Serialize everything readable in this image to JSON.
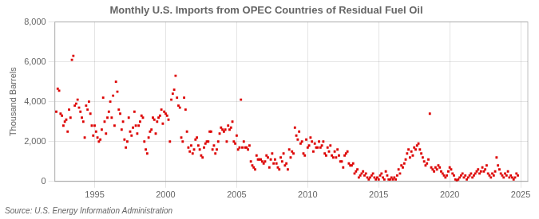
{
  "chart_data": {
    "type": "scatter",
    "title": "Monthly U.S. Imports from OPEC Countries of Residual Fuel Oil",
    "ylabel": "Thousand Barrels",
    "annotations": [
      "Source: U.S. Energy Information Administration"
    ],
    "color": "#dd0000",
    "marker": "square",
    "grid": true,
    "xlim": [
      1992.2,
      2025.5
    ],
    "xticks": [
      1995,
      2000,
      2005,
      2010,
      2015,
      2020,
      2025
    ],
    "ylim": [
      0,
      8000
    ],
    "yticks": [
      0,
      {
        "value": 2000,
        "label": "2,000"
      },
      {
        "value": 4000,
        "label": "4,000"
      },
      {
        "value": 6000,
        "label": "6,000"
      },
      {
        "value": 8000,
        "label": "8,000"
      }
    ],
    "x": [
      1992.3,
      1992.4,
      1992.5,
      1992.6,
      1992.7,
      1992.8,
      1992.9,
      1993.0,
      1993.1,
      1993.2,
      1993.3,
      1993.4,
      1993.5,
      1993.6,
      1993.7,
      1993.8,
      1993.9,
      1994.0,
      1994.1,
      1994.2,
      1994.3,
      1994.4,
      1994.5,
      1994.6,
      1994.7,
      1994.8,
      1994.9,
      1995.0,
      1995.1,
      1995.2,
      1995.3,
      1995.4,
      1995.5,
      1995.6,
      1995.7,
      1995.8,
      1995.9,
      1996.0,
      1996.1,
      1996.2,
      1996.3,
      1996.4,
      1996.5,
      1996.6,
      1996.7,
      1996.8,
      1996.9,
      1997.0,
      1997.1,
      1997.2,
      1997.3,
      1997.4,
      1997.5,
      1997.6,
      1997.7,
      1997.8,
      1997.9,
      1998.0,
      1998.1,
      1998.2,
      1998.3,
      1998.4,
      1998.5,
      1998.6,
      1998.7,
      1998.8,
      1998.9,
      1999.0,
      1999.1,
      1999.2,
      1999.3,
      1999.4,
      1999.5,
      1999.6,
      1999.7,
      1999.8,
      1999.9,
      2000.0,
      2000.1,
      2000.2,
      2000.3,
      2000.4,
      2000.5,
      2000.6,
      2000.7,
      2000.8,
      2000.9,
      2001.0,
      2001.1,
      2001.2,
      2001.3,
      2001.4,
      2001.5,
      2001.6,
      2001.7,
      2001.8,
      2001.9,
      2002.0,
      2002.1,
      2002.2,
      2002.3,
      2002.4,
      2002.5,
      2002.6,
      2002.7,
      2002.8,
      2002.9,
      2003.0,
      2003.1,
      2003.2,
      2003.3,
      2003.4,
      2003.5,
      2003.6,
      2003.7,
      2003.8,
      2003.9,
      2004.0,
      2004.1,
      2004.2,
      2004.3,
      2004.4,
      2004.5,
      2004.6,
      2004.7,
      2004.8,
      2004.9,
      2005.0,
      2005.1,
      2005.2,
      2005.3,
      2005.4,
      2005.5,
      2005.6,
      2005.7,
      2005.8,
      2005.9,
      2006.0,
      2006.1,
      2006.2,
      2006.3,
      2006.4,
      2006.5,
      2006.6,
      2006.7,
      2006.8,
      2006.9,
      2007.0,
      2007.1,
      2007.2,
      2007.3,
      2007.4,
      2007.5,
      2007.6,
      2007.7,
      2007.8,
      2007.9,
      2008.0,
      2008.1,
      2008.2,
      2008.3,
      2008.4,
      2008.5,
      2008.6,
      2008.7,
      2008.8,
      2008.9,
      2009.0,
      2009.1,
      2009.2,
      2009.3,
      2009.4,
      2009.5,
      2009.6,
      2009.7,
      2009.8,
      2009.9,
      2010.0,
      2010.1,
      2010.2,
      2010.3,
      2010.4,
      2010.5,
      2010.6,
      2010.7,
      2010.8,
      2010.9,
      2011.0,
      2011.1,
      2011.2,
      2011.3,
      2011.4,
      2011.5,
      2011.6,
      2011.7,
      2011.8,
      2011.9,
      2012.0,
      2012.1,
      2012.2,
      2012.3,
      2012.4,
      2012.5,
      2012.6,
      2012.7,
      2012.8,
      2012.9,
      2013.0,
      2013.1,
      2013.2,
      2013.3,
      2013.4,
      2013.5,
      2013.6,
      2013.7,
      2013.8,
      2013.9,
      2014.0,
      2014.1,
      2014.2,
      2014.3,
      2014.4,
      2014.5,
      2014.6,
      2014.7,
      2014.8,
      2014.9,
      2015.0,
      2015.1,
      2015.2,
      2015.3,
      2015.4,
      2015.5,
      2015.6,
      2015.7,
      2015.8,
      2015.9,
      2016.0,
      2016.1,
      2016.2,
      2016.3,
      2016.4,
      2016.5,
      2016.6,
      2016.7,
      2016.8,
      2016.9,
      2017.0,
      2017.1,
      2017.2,
      2017.3,
      2017.4,
      2017.5,
      2017.6,
      2017.7,
      2017.8,
      2017.9,
      2018.0,
      2018.1,
      2018.2,
      2018.3,
      2018.4,
      2018.5,
      2018.6,
      2018.7,
      2018.8,
      2018.9,
      2019.0,
      2019.1,
      2019.2,
      2019.3,
      2019.4,
      2019.5,
      2019.6,
      2019.7,
      2019.8,
      2019.9,
      2020.0,
      2020.1,
      2020.2,
      2020.3,
      2020.4,
      2020.5,
      2020.6,
      2020.7,
      2020.8,
      2020.9,
      2021.0,
      2021.1,
      2021.2,
      2021.3,
      2021.4,
      2021.5,
      2021.6,
      2021.7,
      2021.8,
      2021.9,
      2022.0,
      2022.1,
      2022.2,
      2022.3,
      2022.4,
      2022.5,
      2022.6,
      2022.7,
      2022.8,
      2022.9,
      2023.0,
      2023.1,
      2023.2,
      2023.3,
      2023.4,
      2023.5,
      2023.6,
      2023.7,
      2023.8,
      2023.9,
      2024.0,
      2024.1,
      2024.2,
      2024.3,
      2024.4,
      2024.5,
      2024.6,
      2024.7,
      2024.8
    ],
    "values": [
      3500,
      4650,
      4550,
      3400,
      3300,
      2800,
      3000,
      3100,
      2500,
      3600,
      3200,
      6100,
      6300,
      3800,
      3900,
      4100,
      3700,
      3500,
      3200,
      3000,
      2200,
      3800,
      3600,
      4000,
      3400,
      2800,
      2300,
      2800,
      2500,
      2200,
      2000,
      2100,
      2600,
      4200,
      3000,
      2400,
      3200,
      3500,
      4000,
      3200,
      4300,
      2800,
      5000,
      4500,
      3600,
      3400,
      2600,
      3000,
      2100,
      1700,
      2000,
      3200,
      2500,
      2300,
      2700,
      3500,
      2800,
      2400,
      2800,
      3000,
      3300,
      3200,
      2000,
      1600,
      1400,
      2200,
      2500,
      2600,
      3200,
      3100,
      2400,
      3000,
      3200,
      3300,
      3600,
      2900,
      3500,
      3400,
      3300,
      3100,
      2000,
      4100,
      4400,
      4600,
      5300,
      4200,
      3800,
      3700,
      2200,
      2000,
      4200,
      3600,
      2500,
      1700,
      1500,
      1800,
      1400,
      1600,
      2100,
      2200,
      1800,
      1600,
      1300,
      1200,
      1700,
      1900,
      2000,
      2000,
      2500,
      2500,
      1600,
      1800,
      1400,
      1600,
      2000,
      2400,
      2700,
      2600,
      2500,
      2600,
      2000,
      2800,
      2600,
      2700,
      3000,
      2000,
      1900,
      2300,
      1600,
      1700,
      4100,
      1700,
      2000,
      1700,
      1700,
      1600,
      1800,
      1000,
      800,
      700,
      600,
      1300,
      1100,
      1100,
      1100,
      1000,
      900,
      1000,
      1300,
      1200,
      700,
      1100,
      1400,
      900,
      1100,
      900,
      700,
      600,
      1200,
      1000,
      1400,
      800,
      900,
      600,
      1600,
      1200,
      1500,
      1400,
      2700,
      2300,
      2100,
      2500,
      1900,
      2000,
      1400,
      1300,
      2100,
      1700,
      1800,
      2200,
      2000,
      1500,
      1900,
      1700,
      1700,
      2000,
      1700,
      1800,
      2000,
      1400,
      1300,
      1700,
      1500,
      1800,
      1300,
      1200,
      1500,
      1200,
      1600,
      1300,
      1000,
      1000,
      700,
      1300,
      1400,
      1500,
      900,
      800,
      800,
      900,
      400,
      500,
      600,
      200,
      300,
      400,
      500,
      300,
      400,
      200,
      100,
      200,
      300,
      400,
      200,
      100,
      200,
      100,
      300,
      400,
      200,
      100,
      500,
      300,
      100,
      100,
      200,
      100,
      200,
      100,
      300,
      600,
      400,
      800,
      700,
      900,
      1100,
      1400,
      1600,
      1200,
      1500,
      1300,
      1700,
      1600,
      1800,
      1900,
      1600,
      1400,
      1200,
      1000,
      800,
      900,
      1100,
      3400,
      700,
      600,
      500,
      700,
      600,
      800,
      700,
      500,
      400,
      300,
      200,
      300,
      500,
      700,
      600,
      400,
      300,
      100,
      50,
      100,
      200,
      300,
      400,
      200,
      300,
      100,
      200,
      300,
      400,
      200,
      300,
      400,
      500,
      600,
      400,
      500,
      700,
      500,
      600,
      800,
      400,
      300,
      200,
      400,
      300,
      500,
      1200,
      800,
      600,
      400,
      300,
      200,
      400,
      300,
      500,
      200,
      300,
      200,
      100,
      200,
      400,
      300
    ]
  }
}
